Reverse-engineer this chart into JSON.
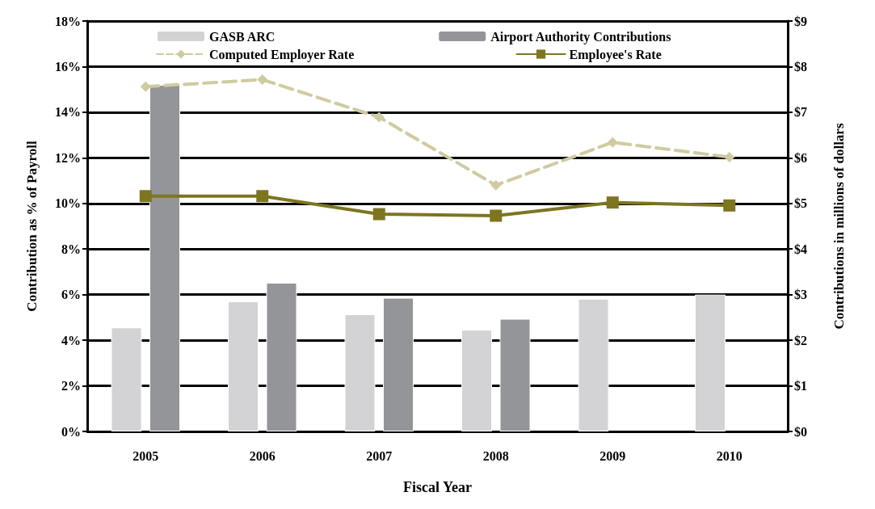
{
  "chart_data": {
    "type": "bar",
    "xlabel": "Fiscal Year",
    "ylabel": "Contribution as % of Payroll",
    "y2label": "Contributions in millions of dollars",
    "categories": [
      "2005",
      "2006",
      "2007",
      "2008",
      "2009",
      "2010"
    ],
    "series": [
      {
        "name": "GASB ARC",
        "axis": "y2",
        "color": "#d3d3d5",
        "values": [
          2.28,
          2.85,
          2.57,
          2.23,
          2.91,
          3.0
        ]
      },
      {
        "name": "Airport Authority Contributions",
        "axis": "y2",
        "color": "#939598",
        "values": [
          7.6,
          3.26,
          2.93,
          2.47,
          null,
          null
        ]
      },
      {
        "name": "Computed Employer Rate",
        "type": "line",
        "color": "#cfcba0",
        "marker": "diamond",
        "line_style": "dashed",
        "values": [
          15.12,
          15.43,
          13.78,
          10.8,
          12.68,
          12.03
        ]
      },
      {
        "name": "Employee's Rate",
        "type": "line",
        "color": "#7d7520",
        "marker": "square",
        "line_style": "solid",
        "values": [
          10.32,
          10.32,
          9.53,
          9.46,
          10.04,
          9.91
        ]
      }
    ],
    "ylim": [
      0,
      18
    ],
    "yticks": [
      {
        "value": 0,
        "label": "0%"
      },
      {
        "value": 2,
        "label": "2%"
      },
      {
        "value": 4,
        "label": "4%"
      },
      {
        "value": 6,
        "label": "6%"
      },
      {
        "value": 8,
        "label": "8%"
      },
      {
        "value": 10,
        "label": "10%"
      },
      {
        "value": 12,
        "label": "12%"
      },
      {
        "value": 14,
        "label": "14%"
      },
      {
        "value": 16,
        "label": "16%"
      },
      {
        "value": 18,
        "label": "18%"
      }
    ],
    "y2lim": [
      0,
      9
    ],
    "y2ticks": [
      {
        "value": 0,
        "label": "$0"
      },
      {
        "value": 1,
        "label": "$1"
      },
      {
        "value": 2,
        "label": "$2"
      },
      {
        "value": 3,
        "label": "$3"
      },
      {
        "value": 4,
        "label": "$4"
      },
      {
        "value": 5,
        "label": "$5"
      },
      {
        "value": 6,
        "label": "$6"
      },
      {
        "value": 7,
        "label": "$7"
      },
      {
        "value": 8,
        "label": "$8"
      },
      {
        "value": 9,
        "label": "$9"
      }
    ],
    "grid": "y",
    "legend": "top"
  }
}
